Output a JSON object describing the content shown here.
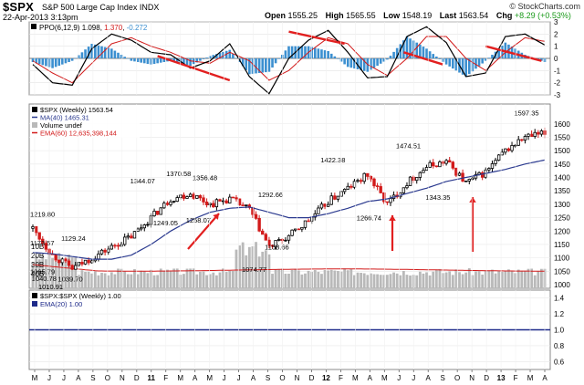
{
  "header": {
    "symbol": "$SPX",
    "description": "S&P 500 Large Cap Index  INDX",
    "site": "© StockCharts.com",
    "datetime": "22-Apr-2013 3:13pm",
    "open_label": "Open",
    "open": "1555.25",
    "high_label": "High",
    "high": "1565.55",
    "low_label": "Low",
    "low": "1548.19",
    "last_label": "Last",
    "last": "1563.54",
    "chg_label": "Chg",
    "chg": "+8.29 (+0.53%)"
  },
  "colors": {
    "up": "#000000",
    "down": "#d21a1a",
    "ma40": "#2b3a8f",
    "ema": "#d21a1a",
    "hist": "#3b8fd0",
    "vol": "#b9b9b9",
    "ratio": "#1e2a8a",
    "annotation": "#e21f1f"
  },
  "chart_data": [
    {
      "type": "line",
      "title": "PPO(6,12,9) 1.098, 1.370, -0.272",
      "legend": {
        "name": "PPO(6,12,9)",
        "ppo": "1.098",
        "signal": "1.370",
        "hist": "-0.272"
      },
      "ylim": [
        -3,
        3
      ],
      "yticks": [
        "3",
        "2",
        "1",
        "0",
        "-1",
        "-2",
        "-3"
      ],
      "x": [
        0,
        6,
        12,
        18,
        24,
        30,
        36,
        42,
        48,
        54,
        60,
        66,
        72,
        78,
        84,
        90,
        96,
        102,
        108,
        114,
        120,
        126,
        132,
        138,
        144,
        150,
        156
      ],
      "series": [
        {
          "name": "PPO",
          "values": [
            -0.5,
            -2.0,
            -2.2,
            0.8,
            2.0,
            1.5,
            0.5,
            0.3,
            -0.8,
            -0.2,
            1.2,
            -1.5,
            -2.9,
            0.0,
            1.5,
            2.3,
            0.5,
            -1.6,
            -1.5,
            1.8,
            2.6,
            1.3,
            -1.5,
            -1.2,
            1.8,
            2.0,
            1.1
          ]
        },
        {
          "name": "Signal",
          "values": [
            -0.2,
            -1.2,
            -2.0,
            -0.4,
            1.2,
            1.7,
            1.0,
            0.5,
            -0.2,
            -0.4,
            0.5,
            -0.2,
            -1.8,
            -1.0,
            0.5,
            1.7,
            1.2,
            -0.5,
            -1.4,
            0.0,
            1.8,
            1.8,
            0.0,
            -1.0,
            0.5,
            1.7,
            1.4
          ]
        }
      ],
      "hist_series": "PPO - Signal",
      "annotations": "4 red divergence trend lines"
    },
    {
      "type": "bar",
      "title": "$SPX (Weekly) 1563.54",
      "legend": [
        {
          "name": "$SPX (Weekly) 1563.54"
        },
        {
          "name": "MA(40) 1465.31"
        },
        {
          "name": "Volume undef"
        },
        {
          "name": "EMA(60) 12,635,398,144"
        }
      ],
      "ylim": [
        1000,
        1640
      ],
      "yticks": [
        "1600",
        "1550",
        "1500",
        "1450",
        "1400",
        "1350",
        "1300",
        "1250",
        "1200",
        "1150",
        "1100",
        "1050",
        "1000"
      ],
      "volume_ticks": [
        "40B",
        "30B",
        "20B",
        "10B"
      ],
      "x": [
        0,
        6,
        12,
        18,
        24,
        30,
        36,
        42,
        48,
        54,
        60,
        66,
        72,
        78,
        84,
        90,
        96,
        102,
        108,
        114,
        120,
        126,
        132,
        138,
        144,
        150,
        156
      ],
      "closes": [
        1210,
        1110,
        1060,
        1100,
        1140,
        1180,
        1250,
        1320,
        1340,
        1300,
        1320,
        1280,
        1140,
        1180,
        1240,
        1310,
        1360,
        1410,
        1300,
        1380,
        1440,
        1460,
        1380,
        1420,
        1500,
        1550,
        1563
      ],
      "ma40": [
        1120,
        1115,
        1105,
        1095,
        1095,
        1110,
        1150,
        1200,
        1240,
        1270,
        1285,
        1290,
        1270,
        1250,
        1250,
        1265,
        1285,
        1310,
        1320,
        1340,
        1360,
        1385,
        1400,
        1415,
        1430,
        1450,
        1465
      ],
      "price_labels": [
        {
          "x": 0,
          "y": 1219.8,
          "text": "1219.80"
        },
        {
          "x": 1,
          "y": 1173.57,
          "text": "1173.57"
        },
        {
          "x": 2,
          "y": 1065.79,
          "text": "1065.79"
        },
        {
          "x": 3,
          "y": 1040.78,
          "text": "1040.78"
        },
        {
          "x": 5,
          "y": 1010.91,
          "text": "1010.91"
        },
        {
          "x": 11,
          "y": 1039.7,
          "text": "1039.70"
        },
        {
          "x": 12,
          "y": 1129.24,
          "text": "1129.24"
        },
        {
          "x": 33,
          "y": 1344.07,
          "text": "1344.07"
        },
        {
          "x": 40,
          "y": 1249.05,
          "text": "1249.05"
        },
        {
          "x": 44,
          "y": 1370.58,
          "text": "1370.58"
        },
        {
          "x": 52,
          "y": 1356.48,
          "text": "1356.48"
        },
        {
          "x": 50,
          "y": 1258.07,
          "text": "1258.07"
        },
        {
          "x": 67,
          "y": 1074.77,
          "text": "1074.77"
        },
        {
          "x": 72,
          "y": 1292.66,
          "text": "1292.66"
        },
        {
          "x": 74,
          "y": 1158.66,
          "text": "1158.66"
        },
        {
          "x": 91,
          "y": 1422.38,
          "text": "1422.38"
        },
        {
          "x": 102,
          "y": 1266.74,
          "text": "1266.74"
        },
        {
          "x": 114,
          "y": 1474.51,
          "text": "1474.51"
        },
        {
          "x": 123,
          "y": 1343.35,
          "text": "1343.35"
        },
        {
          "x": 150,
          "y": 1597.35,
          "text": "1597.35"
        }
      ],
      "annotations": "4 red arrows pointing up at lows"
    },
    {
      "type": "line",
      "title": "$SPX:$SPX (Weekly) 1.00",
      "legend": [
        {
          "name": "$SPX:$SPX (Weekly) 1.00"
        },
        {
          "name": "EMA(20) 1.00"
        }
      ],
      "ylim": [
        0.5,
        1.5
      ],
      "yticks": [
        "1.4",
        "1.2",
        "1.0",
        "0.8",
        "0.6"
      ],
      "series": [
        {
          "name": "$SPX:$SPX",
          "values": [
            1.0,
            1.0
          ]
        }
      ]
    }
  ],
  "xaxis": {
    "labels": [
      "M",
      "J",
      "J",
      "A",
      "S",
      "O",
      "N",
      "D",
      "11",
      "F",
      "M",
      "A",
      "M",
      "J",
      "J",
      "A",
      "S",
      "O",
      "N",
      "D",
      "12",
      "F",
      "M",
      "A",
      "M",
      "J",
      "J",
      "A",
      "S",
      "O",
      "N",
      "D",
      "13",
      "F",
      "M",
      "A"
    ],
    "bold": [
      "11",
      "12",
      "13"
    ]
  }
}
